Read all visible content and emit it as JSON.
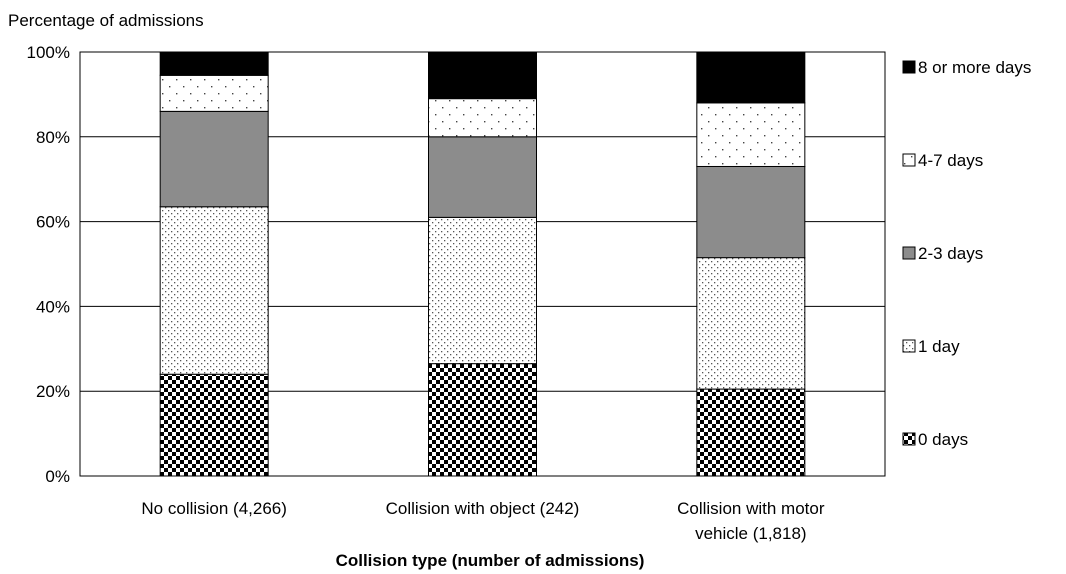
{
  "chart_data": {
    "type": "bar",
    "stacked": true,
    "ylabel": "Percentage of admissions",
    "xlabel": "Collision type (number of admissions)",
    "ylim": [
      0,
      100
    ],
    "yticks": [
      "0%",
      "20%",
      "40%",
      "60%",
      "80%",
      "100%"
    ],
    "grid": true,
    "legend_position": "right",
    "categories": [
      [
        "No collision (4,266)"
      ],
      [
        "Collision with object (242)"
      ],
      [
        "Collision with motor",
        "vehicle (1,818)"
      ]
    ],
    "series": [
      {
        "name": "0 days",
        "values": [
          24,
          26.5,
          20.5
        ],
        "pattern": "checker"
      },
      {
        "name": "1 day",
        "values": [
          39.5,
          34.5,
          31
        ],
        "pattern": "fine-dots"
      },
      {
        "name": "2-3 days",
        "values": [
          22.5,
          19,
          21.5
        ],
        "pattern": "gray",
        "color": "#8c8c8c"
      },
      {
        "name": "4-7 days",
        "values": [
          8.5,
          9,
          15
        ],
        "pattern": "sparse-dots"
      },
      {
        "name": "8 or more days",
        "values": [
          5.5,
          11,
          12
        ],
        "pattern": "black",
        "color": "#000000"
      }
    ]
  }
}
